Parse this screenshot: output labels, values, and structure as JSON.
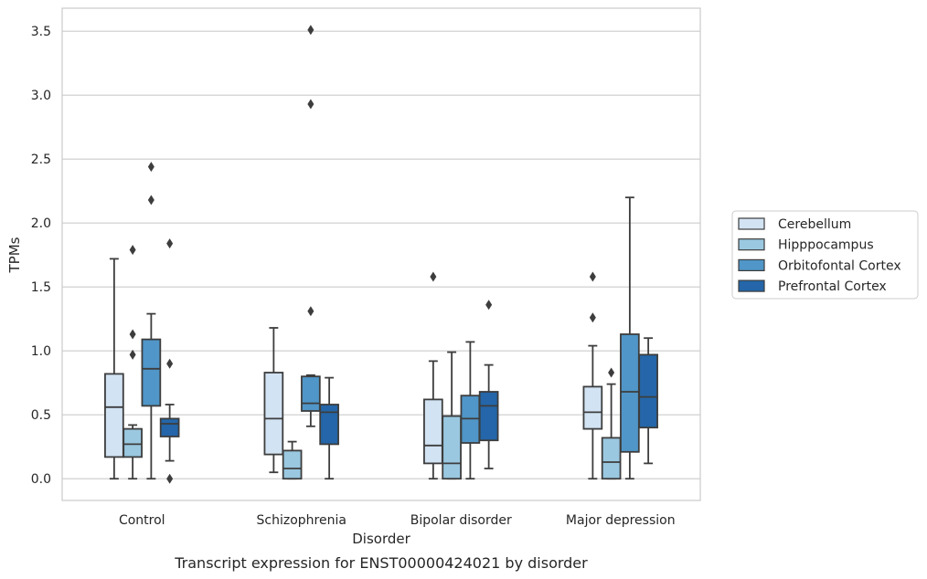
{
  "caption": "Transcript expression for ENST00000424021 by disorder",
  "chart_data": {
    "type": "box",
    "xlabel": "Disorder",
    "ylabel": "TPMs",
    "ylim": [
      -0.17,
      3.68
    ],
    "yticks": [
      "0.0",
      "0.5",
      "1.0",
      "1.5",
      "2.0",
      "2.5",
      "3.0",
      "3.5"
    ],
    "ytick_values": [
      0,
      0.5,
      1.0,
      1.5,
      2.0,
      2.5,
      3.0,
      3.5
    ],
    "grid": "horizontal",
    "legend_position": "right",
    "categories": [
      "Control",
      "Schizophrenia",
      "Bipolar disorder",
      "Major depression"
    ],
    "series": [
      {
        "name": "Cerebellum",
        "color": "#d2e3f3",
        "boxes": [
          {
            "whislo": 0.0,
            "q1": 0.17,
            "med": 0.56,
            "q3": 0.82,
            "whishi": 1.72,
            "fliers": []
          },
          {
            "whislo": 0.05,
            "q1": 0.19,
            "med": 0.47,
            "q3": 0.83,
            "whishi": 1.18,
            "fliers": []
          },
          {
            "whislo": 0.0,
            "q1": 0.12,
            "med": 0.26,
            "q3": 0.62,
            "whishi": 0.92,
            "fliers": [
              1.58
            ]
          },
          {
            "whislo": 0.0,
            "q1": 0.39,
            "med": 0.52,
            "q3": 0.72,
            "whishi": 1.04,
            "fliers": [
              1.26,
              1.58
            ]
          }
        ]
      },
      {
        "name": "Hipppocampus",
        "color": "#9ac8e0",
        "boxes": [
          {
            "whislo": 0.0,
            "q1": 0.17,
            "med": 0.27,
            "q3": 0.39,
            "whishi": 0.42,
            "fliers": [
              0.97,
              1.13,
              1.79
            ]
          },
          {
            "whislo": 0.0,
            "q1": 0.0,
            "med": 0.08,
            "q3": 0.22,
            "whishi": 0.29,
            "fliers": []
          },
          {
            "whislo": 0.0,
            "q1": 0.0,
            "med": 0.12,
            "q3": 0.49,
            "whishi": 0.99,
            "fliers": []
          },
          {
            "whislo": 0.0,
            "q1": 0.0,
            "med": 0.13,
            "q3": 0.32,
            "whishi": 0.74,
            "fliers": [
              0.83
            ]
          }
        ]
      },
      {
        "name": "Orbitofontal Cortex",
        "color": "#5096c8",
        "boxes": [
          {
            "whislo": 0.0,
            "q1": 0.57,
            "med": 0.86,
            "q3": 1.09,
            "whishi": 1.29,
            "fliers": [
              2.18,
              2.44
            ]
          },
          {
            "whislo": 0.41,
            "q1": 0.53,
            "med": 0.59,
            "q3": 0.8,
            "whishi": 0.81,
            "fliers": [
              1.31,
              2.93,
              3.51
            ]
          },
          {
            "whislo": 0.0,
            "q1": 0.28,
            "med": 0.47,
            "q3": 0.65,
            "whishi": 1.07,
            "fliers": []
          },
          {
            "whislo": 0.0,
            "q1": 0.21,
            "med": 0.68,
            "q3": 1.13,
            "whishi": 2.2,
            "fliers": []
          }
        ]
      },
      {
        "name": "Prefrontal Cortex",
        "color": "#2466a9",
        "boxes": [
          {
            "whislo": 0.14,
            "q1": 0.33,
            "med": 0.43,
            "q3": 0.47,
            "whishi": 0.58,
            "fliers": [
              0.0,
              0.9,
              1.84
            ]
          },
          {
            "whislo": 0.0,
            "q1": 0.27,
            "med": 0.52,
            "q3": 0.58,
            "whishi": 0.79,
            "fliers": []
          },
          {
            "whislo": 0.08,
            "q1": 0.3,
            "med": 0.57,
            "q3": 0.68,
            "whishi": 0.89,
            "fliers": [
              1.36
            ]
          },
          {
            "whislo": 0.12,
            "q1": 0.4,
            "med": 0.64,
            "q3": 0.97,
            "whishi": 1.1,
            "fliers": []
          }
        ]
      }
    ]
  }
}
